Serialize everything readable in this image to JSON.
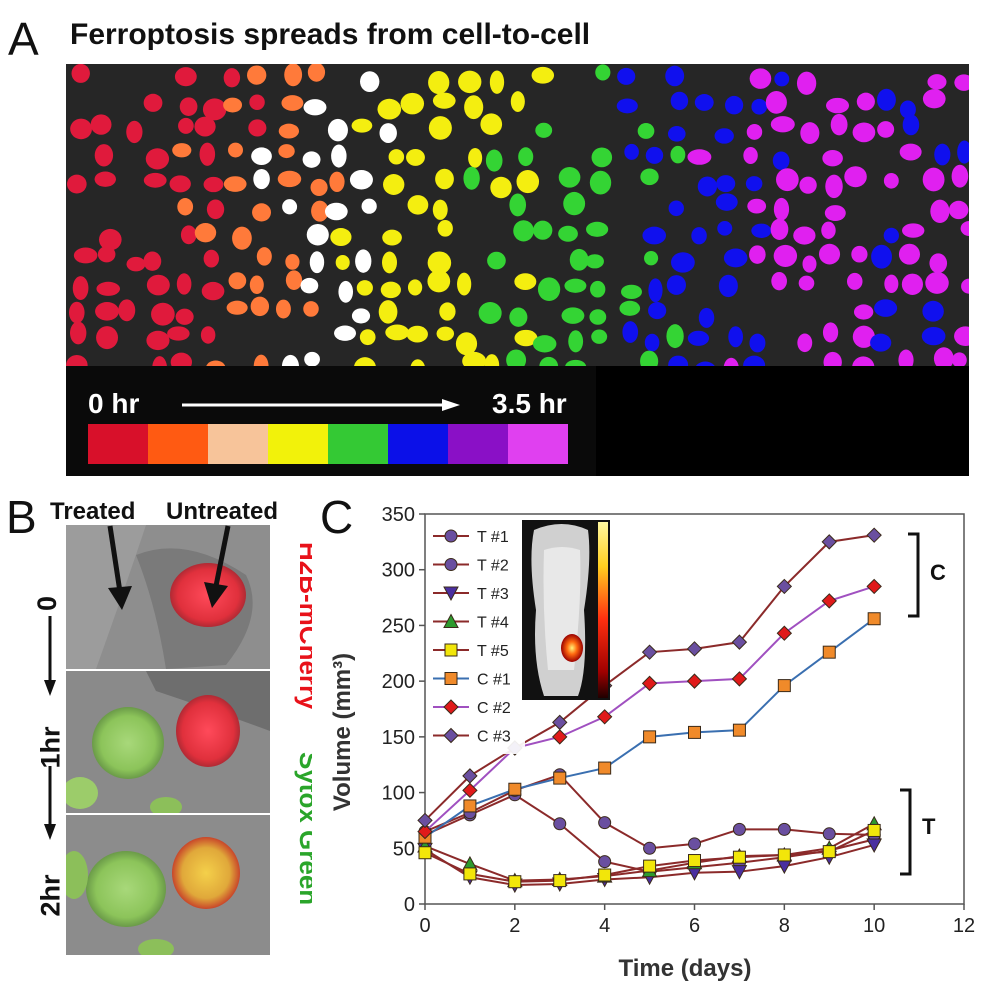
{
  "panel_a": {
    "letter": "A",
    "title": "Ferroptosis spreads from cell-to-cell",
    "scale": {
      "start_label": "0 hr",
      "end_label": "3.5 hr",
      "colors": [
        "#d8102a",
        "#ff5a12",
        "#f7c49a",
        "#f2f20a",
        "#34c934",
        "#0b10e8",
        "#8a10c6",
        "#e040f0"
      ]
    }
  },
  "panel_b": {
    "letter": "B",
    "treated_label": "Treated",
    "untreated_label": "Untreated",
    "time_labels": [
      "0",
      "1hr",
      "2hr"
    ],
    "legend_red": "H2B-mCherry",
    "legend_green": "Sytox Green",
    "legend_red_color": "#e8121a",
    "legend_green_color": "#2aa52a"
  },
  "panel_c": {
    "letter": "C",
    "bracket_c_label": "C",
    "bracket_t_label": "T"
  },
  "chart_data": {
    "type": "line",
    "xlabel": "Time (days)",
    "ylabel": "Volume (mm³)",
    "xlim": [
      0,
      12
    ],
    "ylim": [
      0,
      350
    ],
    "xticks": [
      0,
      2,
      4,
      6,
      8,
      10,
      12
    ],
    "yticks": [
      0,
      50,
      100,
      150,
      200,
      250,
      300,
      350
    ],
    "grid": false,
    "legend_position": "top-left",
    "x": [
      0,
      1,
      2,
      3,
      4,
      5,
      6,
      7,
      8,
      9,
      10
    ],
    "series": [
      {
        "name": "T #1",
        "marker": "circle",
        "color": "#6a4fa0",
        "line": "#8b2a2a",
        "values": [
          62,
          80,
          98,
          72,
          38,
          29,
          33,
          37,
          42,
          48,
          58
        ]
      },
      {
        "name": "T #2",
        "marker": "circle",
        "color": "#6a4fa0",
        "line": "#8b2a2a",
        "values": [
          65,
          82,
          102,
          116,
          73,
          50,
          54,
          67,
          67,
          63,
          62
        ]
      },
      {
        "name": "T #3",
        "marker": "triangle-down",
        "color": "#4a2fa0",
        "line": "#8b2a2a",
        "values": [
          49,
          24,
          17,
          18,
          22,
          24,
          28,
          29,
          34,
          42,
          53
        ]
      },
      {
        "name": "T #4",
        "marker": "triangle-up",
        "color": "#2e9a2e",
        "line": "#8b2a2a",
        "values": [
          52,
          36,
          21,
          22,
          25,
          30,
          37,
          43,
          44,
          50,
          72
        ]
      },
      {
        "name": "T #5",
        "marker": "square",
        "color": "#f2e60a",
        "line": "#8b2a2a",
        "values": [
          46,
          27,
          20,
          21,
          26,
          34,
          39,
          42,
          44,
          47,
          66
        ]
      },
      {
        "name": "C #1",
        "marker": "square",
        "color": "#f08a2a",
        "line": "#3a6fb0",
        "values": [
          60,
          88,
          103,
          113,
          122,
          150,
          154,
          156,
          196,
          226,
          256
        ]
      },
      {
        "name": "C #2",
        "marker": "diamond",
        "color": "#e01a1a",
        "line": "#a050c0",
        "values": [
          65,
          102,
          140,
          150,
          168,
          198,
          200,
          202,
          243,
          272,
          285
        ]
      },
      {
        "name": "C #3",
        "marker": "diamond",
        "color": "#6a4fa0",
        "line": "#8b2a2a",
        "values": [
          75,
          115,
          140,
          163,
          196,
          226,
          229,
          235,
          285,
          325,
          331
        ]
      }
    ]
  }
}
